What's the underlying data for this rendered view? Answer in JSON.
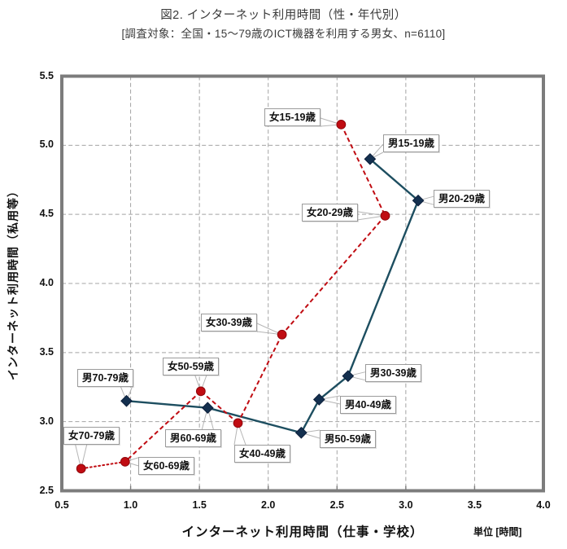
{
  "page": {
    "title_line1": "図2. インターネット利用時間（性・年代別）",
    "title_line2": "[調査対象：全国・15～79歳のICT機器を利用する男女、n=6110]"
  },
  "axes": {
    "x_title": "インターネット利用時間（仕事・学校）",
    "y_title": "インターネット利用時間（私用等）",
    "unit_note": "単位 [時間]"
  },
  "style": {
    "grid_color": "#a4a4a4",
    "frame_color": "#7c7c7c",
    "tick_color": "#7c7c7c",
    "leader_color": "#b5b5b5",
    "box_border": "#9b9b9b",
    "text_color": "#111111",
    "background": "#ffffff"
  },
  "chart_data": {
    "type": "scatter",
    "title": "図2. インターネット利用時間（性・年代別）",
    "subtitle": "[調査対象：全国・15～79歳のICT機器を利用する男女、n=6110]",
    "xlabel": "インターネット利用時間（仕事・学校）",
    "ylabel": "インターネット利用時間（私用等）",
    "unit": "時間",
    "xlim": [
      0.5,
      4.0
    ],
    "ylim": [
      2.5,
      5.5
    ],
    "x_ticks": [
      0.5,
      1.0,
      1.5,
      2.0,
      2.5,
      3.0,
      3.5,
      4.0
    ],
    "y_ticks": [
      2.5,
      3.0,
      3.5,
      4.0,
      4.5,
      5.0,
      5.5
    ],
    "grid": "dashed gray grid every 0.5, no legend, labels attached to points via callout boxes",
    "series": [
      {
        "key": "male",
        "name": "男",
        "marker": "diamond",
        "line_style": "solid",
        "line_color": "#1d4e60",
        "marker_color": "#14304f",
        "marker_edge": "#0c1f3b",
        "points": [
          {
            "age": "15-19",
            "label": "男15-19歳",
            "x": 2.74,
            "y": 4.9,
            "label_box": [
              471,
              165
            ]
          },
          {
            "age": "20-29",
            "label": "男20-29歳",
            "x": 3.09,
            "y": 4.6,
            "label_box": [
              533,
              233
            ]
          },
          {
            "age": "30-39",
            "label": "男30-39歳",
            "x": 2.58,
            "y": 3.33,
            "label_box": [
              449,
              447
            ]
          },
          {
            "age": "40-49",
            "label": "男40-49歳",
            "x": 2.37,
            "y": 3.16,
            "label_box": [
              418,
              486
            ]
          },
          {
            "age": "50-59",
            "label": "男50-59歳",
            "x": 2.24,
            "y": 2.92,
            "label_box": [
              393,
              528
            ]
          },
          {
            "age": "60-69",
            "label": "男60-69歳",
            "x": 1.56,
            "y": 3.1,
            "label_box": [
              203,
              527
            ]
          },
          {
            "age": "70-79",
            "label": "男70-79歳",
            "x": 0.97,
            "y": 3.15,
            "label_box": [
              95,
              453
            ]
          }
        ]
      },
      {
        "key": "female",
        "name": "女",
        "marker": "circle",
        "line_style": "dashed",
        "dash": "5.5 3.5",
        "tail_dash": "1.8 3.4",
        "line_color": "#c00c12",
        "marker_color": "#c00c12",
        "marker_edge": "#8f070c",
        "points": [
          {
            "age": "15-19",
            "label": "女15-19歳",
            "x": 2.53,
            "y": 5.15,
            "label_box": [
              325,
              133
            ]
          },
          {
            "age": "20-29",
            "label": "女20-29歳",
            "x": 2.85,
            "y": 4.49,
            "label_box": [
              371,
              250
            ]
          },
          {
            "age": "30-39",
            "label": "女30-39歳",
            "x": 2.1,
            "y": 3.63,
            "label_box": [
              247,
              385
            ]
          },
          {
            "age": "40-49",
            "label": "女40-49歳",
            "x": 1.78,
            "y": 2.99,
            "label_box": [
              288,
              546
            ]
          },
          {
            "age": "50-59",
            "label": "女50-59歳",
            "x": 1.51,
            "y": 3.22,
            "label_box": [
              200,
              439
            ]
          },
          {
            "age": "60-69",
            "label": "女60-69歳",
            "x": 0.96,
            "y": 2.71,
            "label_box": [
              170,
              561
            ]
          },
          {
            "age": "70-79",
            "label": "女70-79歳",
            "x": 0.64,
            "y": 2.66,
            "label_box": [
              78,
              524
            ]
          }
        ]
      }
    ]
  }
}
